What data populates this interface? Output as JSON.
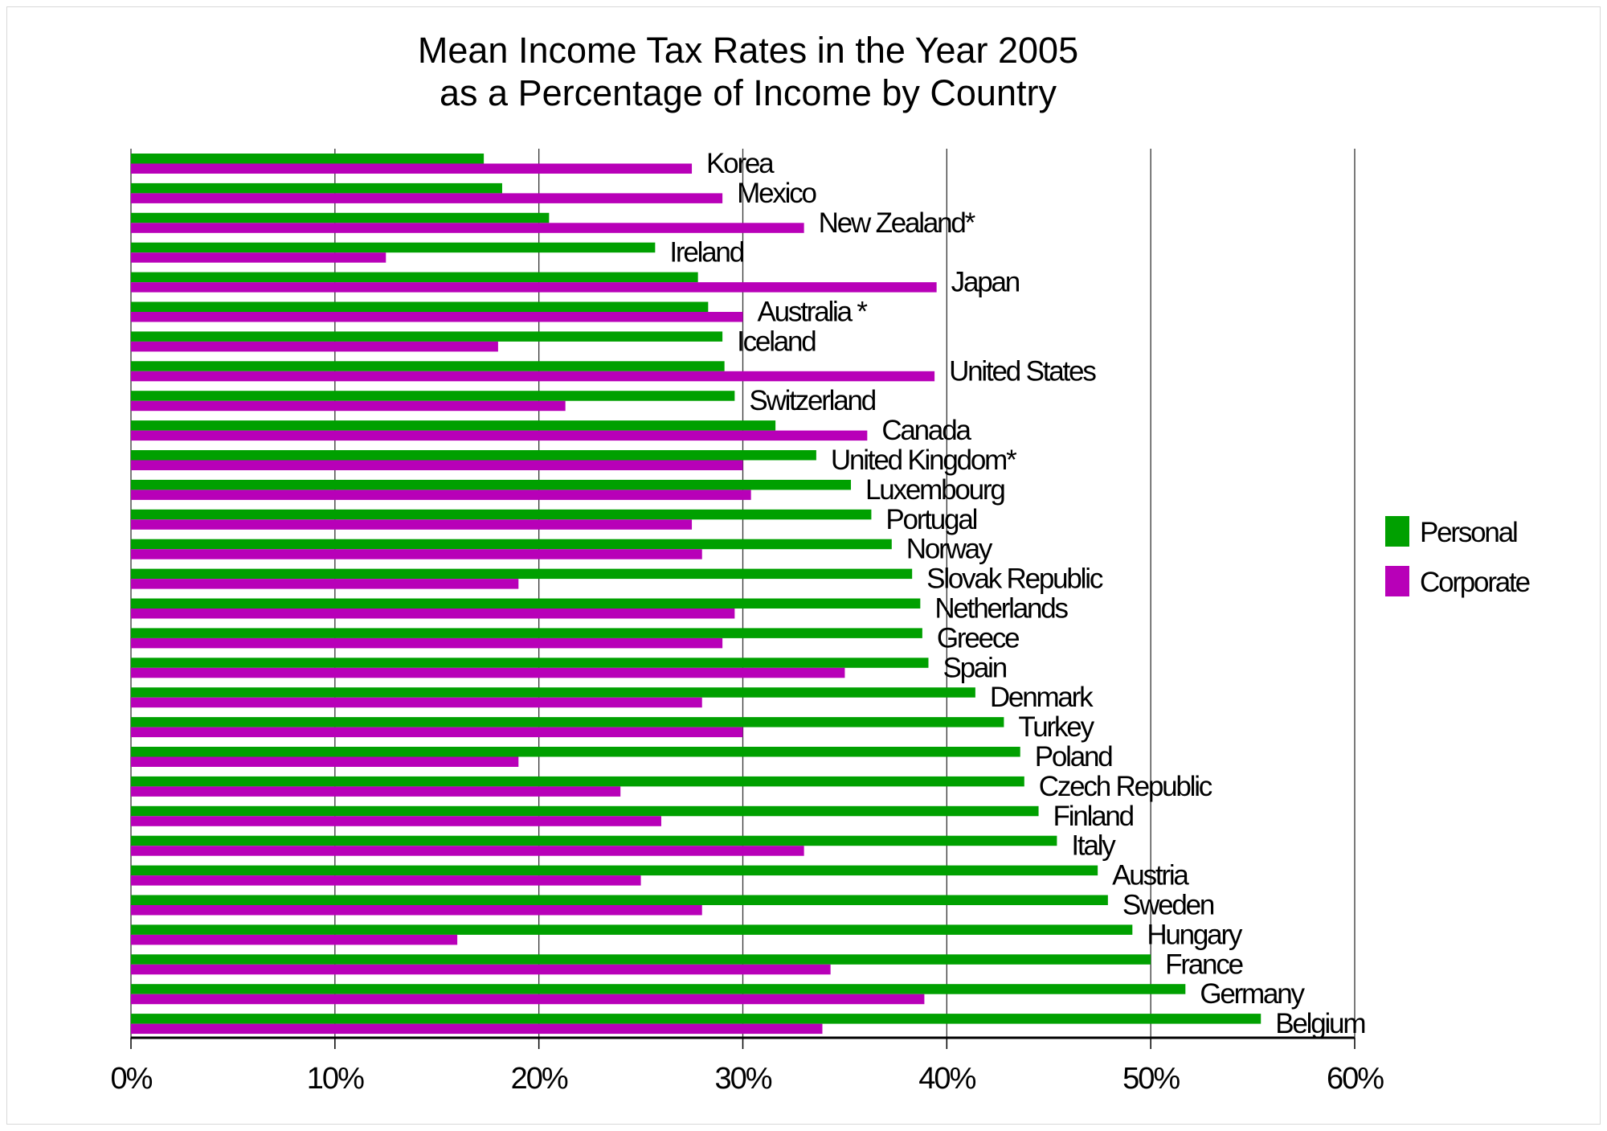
{
  "chart_data": {
    "type": "bar",
    "orientation": "horizontal",
    "title": [
      "Mean Income Tax Rates in the Year 2005",
      "as a Percentage of Income by Country"
    ],
    "xlabel": "",
    "ylabel": "",
    "xlim": [
      0,
      60
    ],
    "x_ticks": [
      "0%",
      "10%",
      "20%",
      "30%",
      "40%",
      "50%",
      "60%"
    ],
    "grid": "vertical",
    "legend_position": "right",
    "categories": [
      "Korea",
      "Mexico",
      "New Zealand*",
      "Ireland",
      "Japan",
      "Australia *",
      "Iceland",
      "United States",
      "Switzerland",
      "Canada",
      "United Kingdom*",
      "Luxembourg",
      "Portugal",
      "Norway",
      "Slovak Republic",
      "Netherlands",
      "Greece",
      "Spain",
      "Denmark",
      "Turkey",
      "Poland",
      "Czech Republic",
      "Finland",
      "Italy",
      "Austria",
      "Sweden",
      "Hungary",
      "France",
      "Germany",
      "Belgium"
    ],
    "series": [
      {
        "name": "Personal",
        "color": "#00a000",
        "values": [
          17.3,
          18.2,
          20.5,
          25.7,
          27.8,
          28.3,
          29.0,
          29.1,
          29.6,
          31.6,
          33.6,
          35.3,
          36.3,
          37.3,
          38.3,
          38.7,
          38.8,
          39.1,
          41.4,
          42.8,
          43.6,
          43.8,
          44.5,
          45.4,
          47.4,
          47.9,
          49.1,
          50.0,
          51.7,
          55.4
        ]
      },
      {
        "name": "Corporate",
        "color": "#b800b8",
        "values": [
          27.5,
          29.0,
          33.0,
          12.5,
          39.5,
          30.0,
          18.0,
          39.4,
          21.3,
          36.1,
          30.0,
          30.4,
          27.5,
          28.0,
          19.0,
          29.6,
          29.0,
          35.0,
          28.0,
          30.0,
          19.0,
          24.0,
          26.0,
          33.0,
          25.0,
          28.0,
          16.0,
          34.3,
          38.9,
          33.9
        ]
      }
    ]
  }
}
